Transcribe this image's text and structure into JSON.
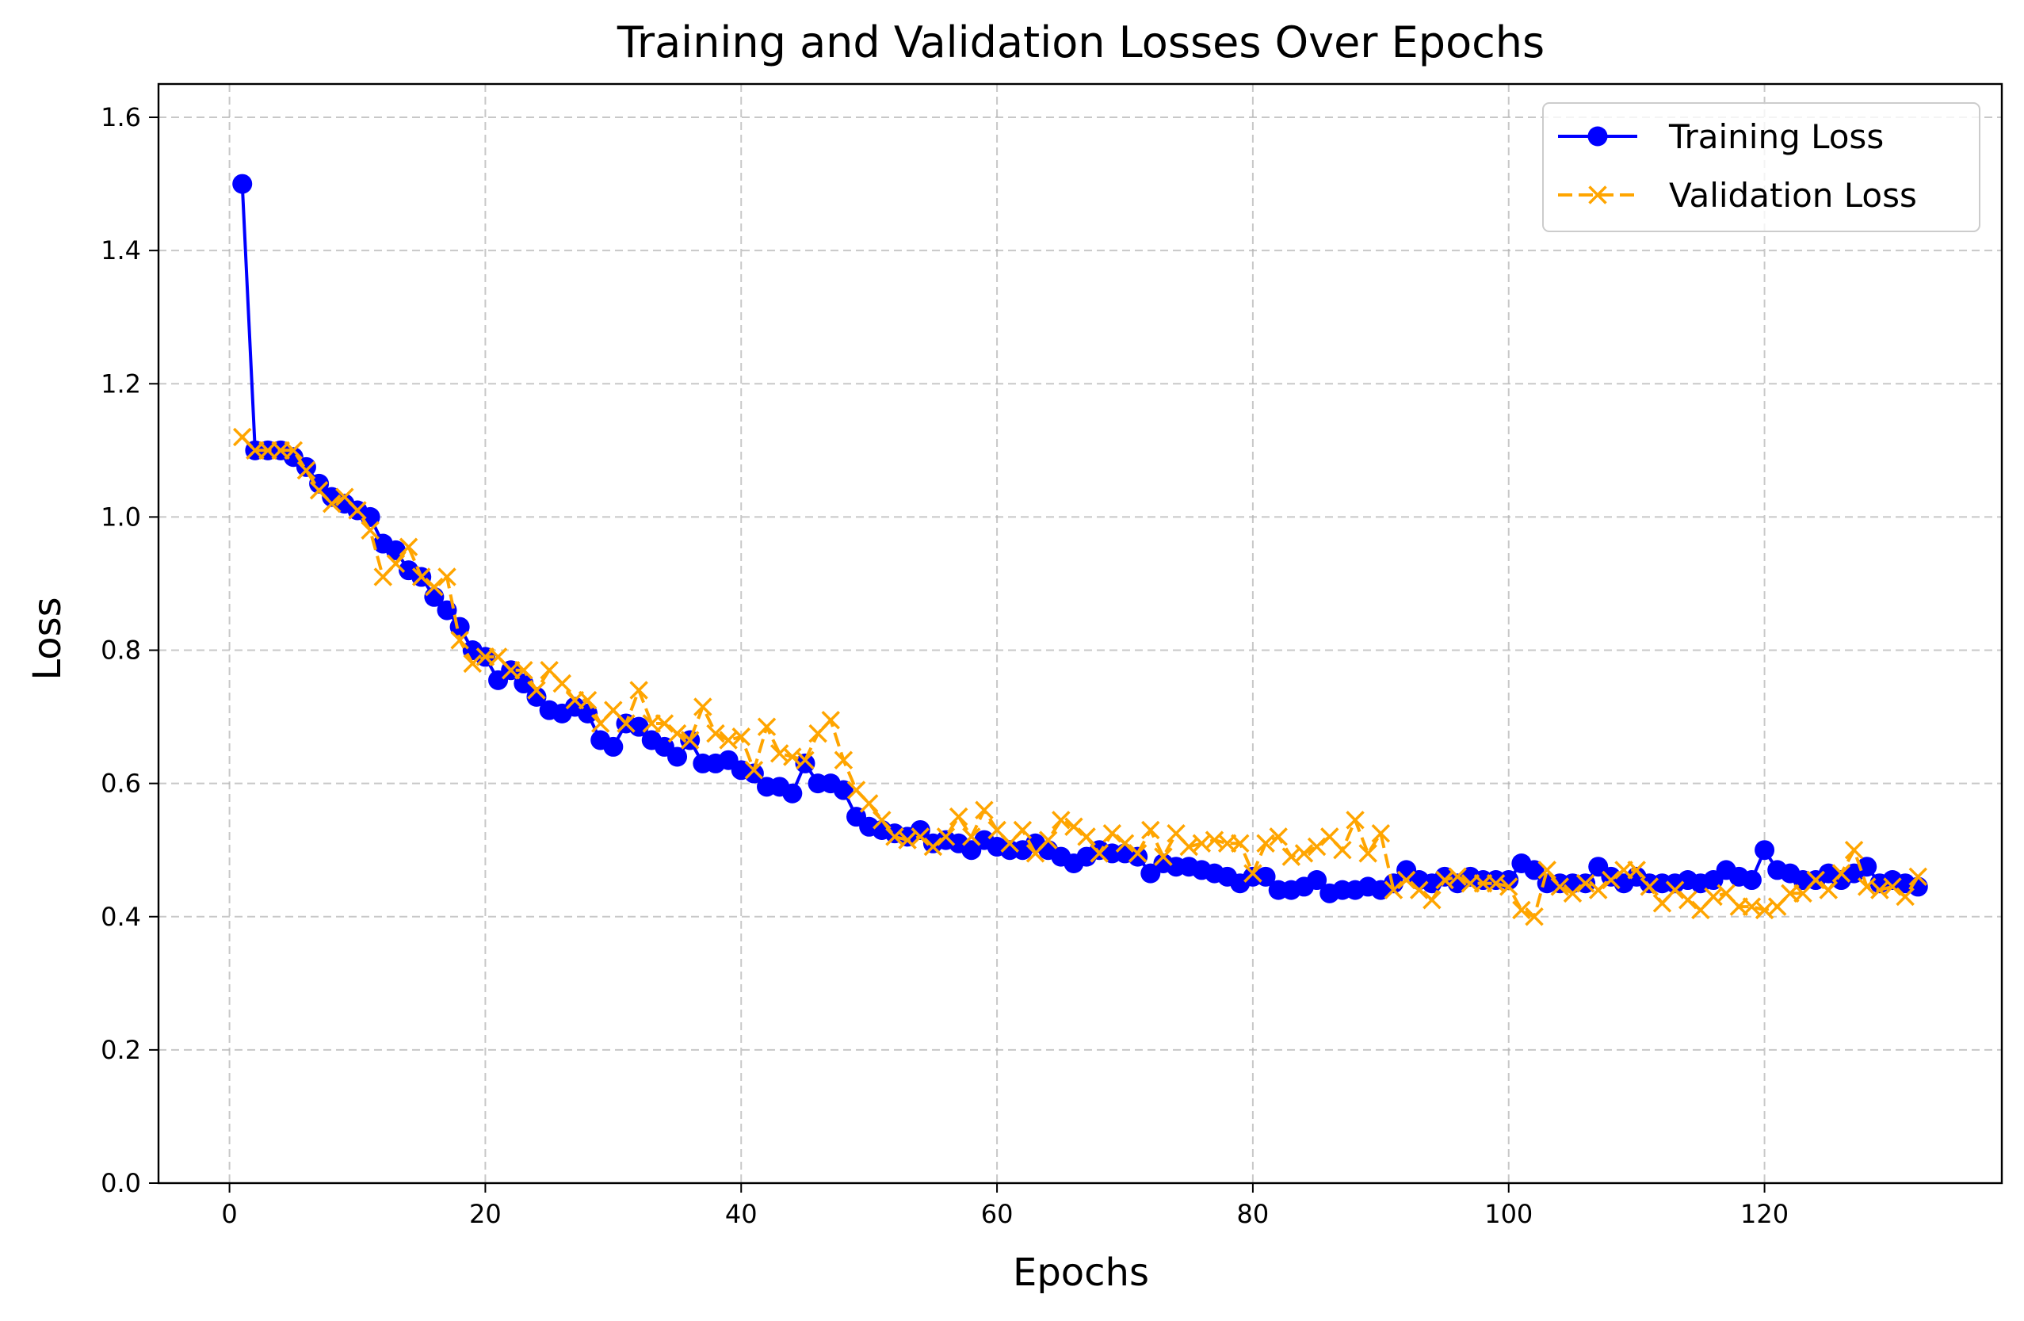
{
  "chart_data": {
    "type": "line",
    "title": "Training and Validation Losses Over Epochs",
    "xlabel": "Epochs",
    "ylabel": "Loss",
    "xlim": [
      -5.55,
      138.55
    ],
    "ylim": [
      0.0,
      1.65
    ],
    "xticks": [
      0,
      20,
      40,
      60,
      80,
      100,
      120
    ],
    "yticks": [
      0.0,
      0.2,
      0.4,
      0.6,
      0.8,
      1.0,
      1.2,
      1.4,
      1.6
    ],
    "xtick_labels": [
      "0",
      "20",
      "40",
      "60",
      "80",
      "100",
      "120"
    ],
    "ytick_labels": [
      "0.0",
      "0.2",
      "0.4",
      "0.6",
      "0.8",
      "1.0",
      "1.2",
      "1.4",
      "1.6"
    ],
    "grid": true,
    "legend_position": "top-right",
    "x": [
      1,
      2,
      3,
      4,
      5,
      6,
      7,
      8,
      9,
      10,
      11,
      12,
      13,
      14,
      15,
      16,
      17,
      18,
      19,
      20,
      21,
      22,
      23,
      24,
      25,
      26,
      27,
      28,
      29,
      30,
      31,
      32,
      33,
      34,
      35,
      36,
      37,
      38,
      39,
      40,
      41,
      42,
      43,
      44,
      45,
      46,
      47,
      48,
      49,
      50,
      51,
      52,
      53,
      54,
      55,
      56,
      57,
      58,
      59,
      60,
      61,
      62,
      63,
      64,
      65,
      66,
      67,
      68,
      69,
      70,
      71,
      72,
      73,
      74,
      75,
      76,
      77,
      78,
      79,
      80,
      81,
      82,
      83,
      84,
      85,
      86,
      87,
      88,
      89,
      90,
      91,
      92,
      93,
      94,
      95,
      96,
      97,
      98,
      99,
      100,
      101,
      102,
      103,
      104,
      105,
      106,
      107,
      108,
      109,
      110,
      111,
      112,
      113,
      114,
      115,
      116,
      117,
      118,
      119,
      120,
      121,
      122,
      123,
      124,
      125,
      126,
      127,
      128,
      129,
      130,
      131,
      132
    ],
    "series": [
      {
        "name": "Training Loss",
        "color": "#0000ff",
        "marker": "circle",
        "linestyle": "solid",
        "values": [
          1.5,
          1.1,
          1.1,
          1.1,
          1.09,
          1.075,
          1.05,
          1.03,
          1.02,
          1.01,
          1.0,
          0.96,
          0.95,
          0.92,
          0.91,
          0.88,
          0.86,
          0.835,
          0.8,
          0.79,
          0.755,
          0.77,
          0.75,
          0.73,
          0.71,
          0.705,
          0.715,
          0.705,
          0.665,
          0.655,
          0.69,
          0.685,
          0.665,
          0.655,
          0.64,
          0.665,
          0.63,
          0.63,
          0.635,
          0.62,
          0.615,
          0.595,
          0.595,
          0.585,
          0.63,
          0.6,
          0.6,
          0.59,
          0.55,
          0.535,
          0.53,
          0.525,
          0.52,
          0.53,
          0.51,
          0.515,
          0.51,
          0.5,
          0.515,
          0.505,
          0.5,
          0.5,
          0.51,
          0.5,
          0.49,
          0.48,
          0.49,
          0.5,
          0.495,
          0.495,
          0.49,
          0.465,
          0.48,
          0.475,
          0.475,
          0.47,
          0.465,
          0.46,
          0.45,
          0.46,
          0.46,
          0.44,
          0.44,
          0.445,
          0.455,
          0.435,
          0.44,
          0.44,
          0.445,
          0.44,
          0.45,
          0.47,
          0.455,
          0.45,
          0.46,
          0.45,
          0.46,
          0.455,
          0.455,
          0.455,
          0.48,
          0.47,
          0.45,
          0.45,
          0.45,
          0.45,
          0.475,
          0.46,
          0.45,
          0.46,
          0.45,
          0.45,
          0.45,
          0.455,
          0.45,
          0.455,
          0.47,
          0.46,
          0.455,
          0.5,
          0.47,
          0.465,
          0.455,
          0.455,
          0.465,
          0.455,
          0.465,
          0.475,
          0.45,
          0.455,
          0.45,
          0.445
        ]
      },
      {
        "name": "Validation Loss",
        "color": "#ffa500",
        "marker": "x",
        "linestyle": "dashed",
        "values": [
          1.12,
          1.1,
          1.1,
          1.1,
          1.1,
          1.07,
          1.04,
          1.02,
          1.03,
          1.01,
          0.98,
          0.91,
          0.93,
          0.955,
          0.91,
          0.895,
          0.91,
          0.815,
          0.78,
          0.79,
          0.79,
          0.77,
          0.77,
          0.74,
          0.77,
          0.75,
          0.725,
          0.725,
          0.69,
          0.71,
          0.69,
          0.74,
          0.69,
          0.69,
          0.675,
          0.665,
          0.715,
          0.675,
          0.665,
          0.67,
          0.62,
          0.685,
          0.645,
          0.64,
          0.635,
          0.675,
          0.695,
          0.635,
          0.59,
          0.57,
          0.545,
          0.52,
          0.515,
          0.52,
          0.505,
          0.52,
          0.55,
          0.52,
          0.56,
          0.53,
          0.51,
          0.53,
          0.495,
          0.515,
          0.545,
          0.535,
          0.52,
          0.495,
          0.525,
          0.51,
          0.495,
          0.53,
          0.49,
          0.525,
          0.505,
          0.51,
          0.515,
          0.51,
          0.51,
          0.465,
          0.51,
          0.52,
          0.49,
          0.495,
          0.505,
          0.52,
          0.5,
          0.545,
          0.495,
          0.525,
          0.44,
          0.455,
          0.44,
          0.425,
          0.455,
          0.46,
          0.45,
          0.45,
          0.45,
          0.445,
          0.41,
          0.4,
          0.47,
          0.445,
          0.435,
          0.45,
          0.44,
          0.455,
          0.47,
          0.47,
          0.445,
          0.42,
          0.44,
          0.425,
          0.41,
          0.43,
          0.435,
          0.415,
          0.415,
          0.41,
          0.415,
          0.435,
          0.435,
          0.455,
          0.44,
          0.465,
          0.5,
          0.445,
          0.44,
          0.445,
          0.43,
          0.46
        ]
      }
    ]
  }
}
